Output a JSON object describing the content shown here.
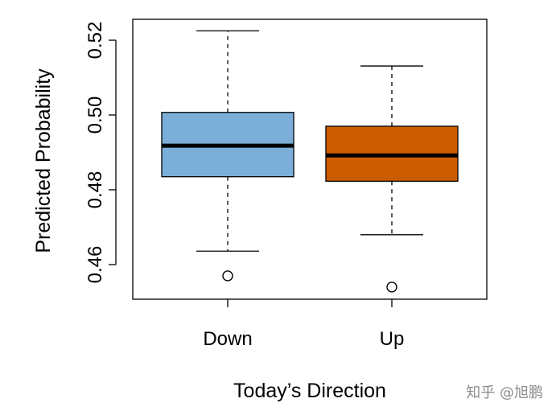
{
  "chart_data": {
    "type": "boxplot",
    "title": "",
    "xlabel": "Today’s Direction",
    "ylabel": "Predicted Probability",
    "ylim": [
      0.45,
      0.525
    ],
    "yticks": [
      "0.46",
      "0.48",
      "0.50",
      "0.52"
    ],
    "categories": [
      "Down",
      "Up"
    ],
    "boxes": [
      {
        "category": "Down",
        "color": "#7bafd9",
        "whisker_low": 0.4636,
        "q1": 0.4835,
        "median": 0.4918,
        "q3": 0.5007,
        "whisker_high": 0.5225,
        "outliers": [
          0.457
        ]
      },
      {
        "category": "Up",
        "color": "#cc5c00",
        "whisker_low": 0.468,
        "q1": 0.4823,
        "median": 0.4892,
        "q3": 0.497,
        "whisker_high": 0.5131,
        "outliers": [
          0.454
        ]
      }
    ],
    "grid": false,
    "legend": "none"
  },
  "watermark": "知乎 @旭鹏"
}
